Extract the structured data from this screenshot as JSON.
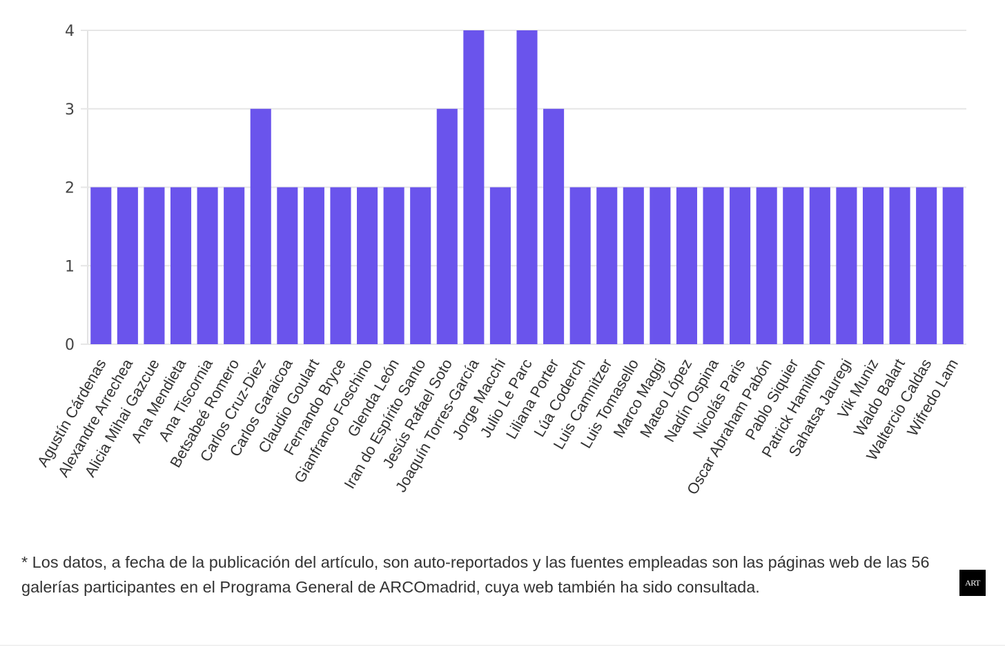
{
  "chart_data": {
    "type": "bar",
    "categories": [
      "Agustín Cárdenas",
      "Alexandre Arrechea",
      "Alicia Mihai Gazcue",
      "Ana Mendieta",
      "Ana Tiscornia",
      "Betsabeé Romero",
      "Carlos Cruz-Diez",
      "Carlos Garaicoa",
      "Claudio Goulart",
      "Fernando Bryce",
      "Gianfranco Foschino",
      "Glenda León",
      "Iran do Espírito Santo",
      "Jesús Rafael Soto",
      "Joaquín Torres-García",
      "Jorge Macchi",
      "Julio Le Parc",
      "Liliana Porter",
      "Lúa Coderch",
      "Luis Camnitzer",
      "Luis Tomasello",
      "Marco Maggi",
      "Mateo López",
      "Nadín Ospina",
      "Nicolás Paris",
      "Oscar Abraham Pabón",
      "Pablo Siquier",
      "Patrick Hamilton",
      "Sahatsa Jauregi",
      "Vik Muniz",
      "Waldo Balart",
      "Waltercio Caldas",
      "Wifredo Lam"
    ],
    "values": [
      2,
      2,
      2,
      2,
      2,
      2,
      3,
      2,
      2,
      2,
      2,
      2,
      2,
      3,
      4,
      2,
      4,
      3,
      2,
      2,
      2,
      2,
      2,
      2,
      2,
      2,
      2,
      2,
      2,
      2,
      2,
      2,
      2
    ],
    "ylim": [
      0,
      4
    ],
    "yticks": [
      0,
      1,
      2,
      3,
      4
    ],
    "bar_color": "#6a54ec",
    "grid": true,
    "title": "",
    "xlabel": "",
    "ylabel": ""
  },
  "footnote": "* Los datos, a fecha de la publicación del artículo, son auto-reportados y las fuentes empleadas son las páginas web de las 56 galerías participantes en el Programa General de ARCOmadrid, cuya web también ha sido consultada.",
  "logo": "ART"
}
